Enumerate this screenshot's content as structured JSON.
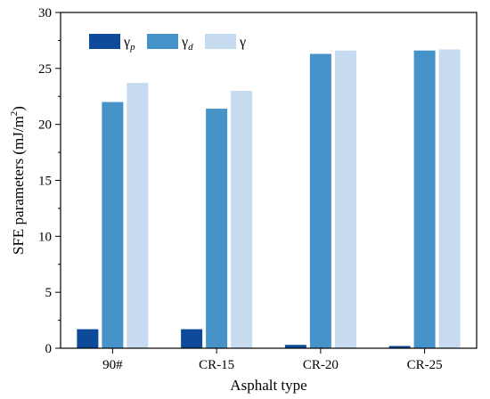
{
  "chart_data": {
    "type": "bar",
    "categories": [
      "90#",
      "CR-15",
      "CR-20",
      "CR-25"
    ],
    "series": [
      {
        "name": "γp",
        "label_main": "γ",
        "label_sub": "p",
        "color": "#0d4a9a",
        "values": [
          1.7,
          1.7,
          0.3,
          0.2
        ]
      },
      {
        "name": "γd",
        "label_main": "γ",
        "label_sub": "d",
        "color": "#4593c8",
        "values": [
          22.0,
          21.4,
          26.3,
          26.6
        ]
      },
      {
        "name": "γ",
        "label_main": "γ",
        "label_sub": "",
        "color": "#c6daf0",
        "values": [
          23.7,
          23.0,
          26.6,
          26.7
        ]
      }
    ],
    "xlabel": "Asphalt type",
    "ylabel": "SFE parameters (mJ/m²)",
    "ylabel_main": "SFE parameters (mJ/m",
    "ylabel_sup": "2",
    "ylabel_end": ")",
    "ylim": [
      0,
      30
    ],
    "yticks": [
      "0",
      "5",
      "10",
      "15",
      "20",
      "25",
      "30"
    ],
    "legend_position": "top-left",
    "grid": false
  }
}
